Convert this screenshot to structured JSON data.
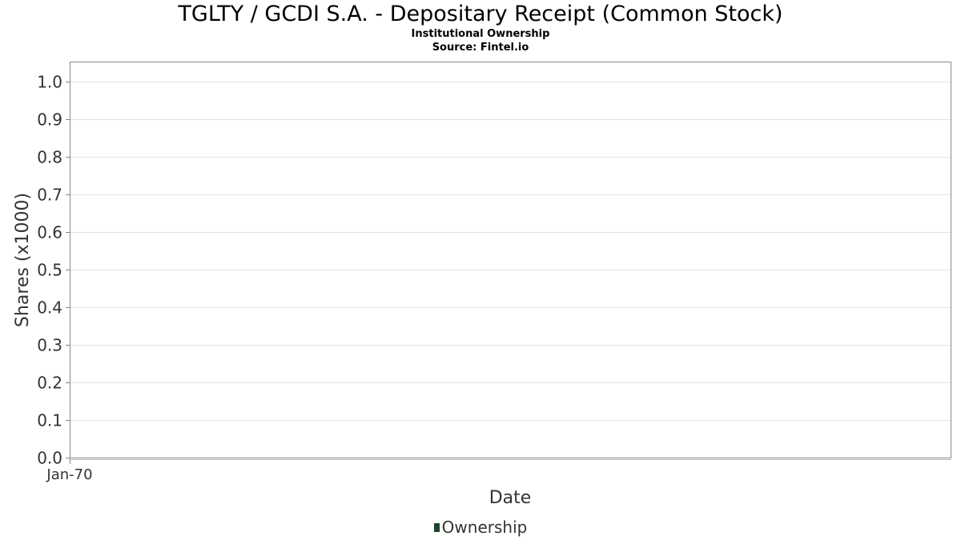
{
  "chart_data": {
    "type": "line",
    "title": "TGLTY / GCDI S.A. - Depositary Receipt (Common Stock)",
    "subtitle": [
      "Institutional Ownership",
      "Source: Fintel.io"
    ],
    "xlabel": "Date",
    "ylabel": "Shares (x1000)",
    "x_ticks": [
      "Jan-70"
    ],
    "ylim": [
      0,
      1.05
    ],
    "y_ticks": [
      "0.0",
      "0.1",
      "0.2",
      "0.3",
      "0.4",
      "0.5",
      "0.6",
      "0.7",
      "0.8",
      "0.9",
      "1.0"
    ],
    "grid": true,
    "legend_position": "bottom",
    "series": [
      {
        "name": "Ownership",
        "color": "#1a472a",
        "x": [],
        "values": []
      }
    ]
  }
}
